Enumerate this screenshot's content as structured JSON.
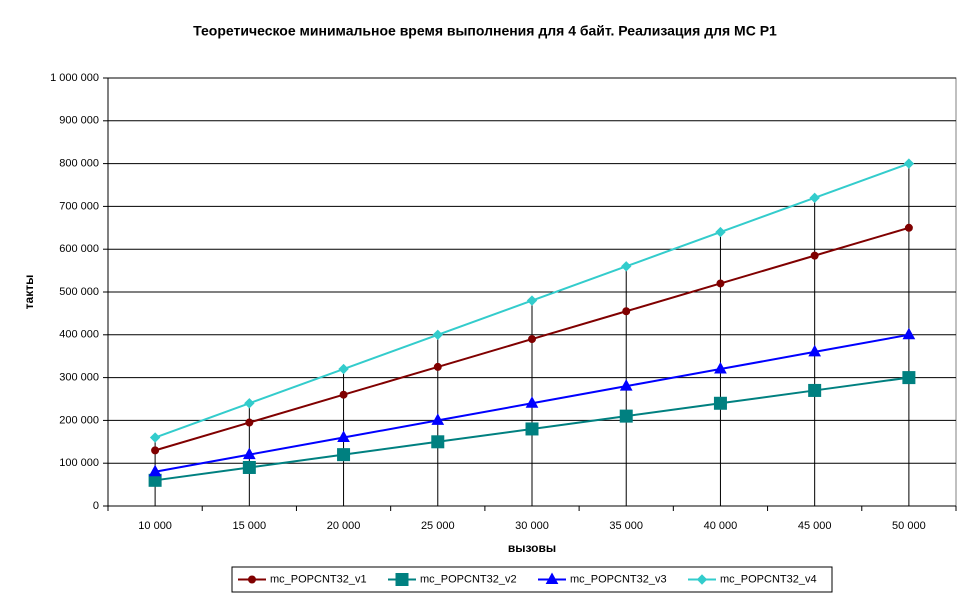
{
  "chart_data": {
    "type": "line",
    "title": "Теоретическое минимальное время выполнения для 4 байт. Реализация для MC P1",
    "x_label": "вызовы",
    "y_label": "такты",
    "categories": [
      "10 000",
      "15 000",
      "20 000",
      "25 000",
      "30 000",
      "35 000",
      "40 000",
      "45 000",
      "50 000"
    ],
    "series": [
      {
        "name": "mc_POPCNT32_v1",
        "color": "#800000",
        "marker": "circle",
        "values": [
          130000,
          195000,
          260000,
          325000,
          390000,
          455000,
          520000,
          585000,
          650000
        ]
      },
      {
        "name": "mc_POPCNT32_v2",
        "color": "#008080",
        "marker": "square",
        "values": [
          60000,
          90000,
          120000,
          150000,
          180000,
          210000,
          240000,
          270000,
          300000
        ]
      },
      {
        "name": "mc_POPCNT32_v3",
        "color": "#0000ff",
        "marker": "triangle",
        "values": [
          80000,
          120000,
          160000,
          200000,
          240000,
          280000,
          320000,
          360000,
          400000
        ]
      },
      {
        "name": "mc_POPCNT32_v4",
        "color": "#33cccc",
        "marker": "diamond",
        "values": [
          160000,
          240000,
          320000,
          400000,
          480000,
          560000,
          640000,
          720000,
          800000
        ]
      }
    ],
    "ylim": [
      0,
      1000000
    ],
    "yticks": [
      0,
      {
        "value": 100000,
        "label": "100 000"
      },
      {
        "value": 200000,
        "label": "200 000"
      },
      {
        "value": 300000,
        "label": "300 000"
      },
      {
        "value": 400000,
        "label": "400 000"
      },
      {
        "value": 500000,
        "label": "500 000"
      },
      {
        "value": 600000,
        "label": "600 000"
      },
      {
        "value": 700000,
        "label": "700 000"
      },
      {
        "value": 800000,
        "label": "800 000"
      },
      {
        "value": 900000,
        "label": "900 000"
      },
      {
        "value": 1000000,
        "label": "1 000 000"
      }
    ],
    "grid": true,
    "drop_lines": true,
    "legend": "bottom"
  }
}
